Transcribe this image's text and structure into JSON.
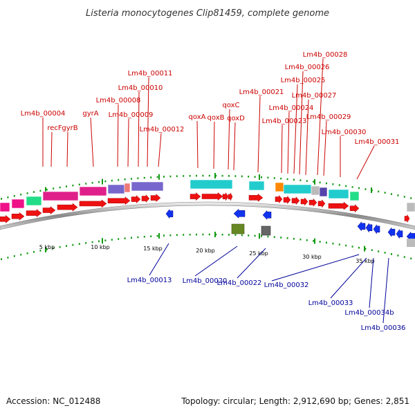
{
  "title": "Listeria monocytogenes Clip81459, complete genome",
  "footer": {
    "accession": "Accession: NC_012488",
    "summary": "Topology: circular; Length: 2,912,690 bp; Genes: 2,851"
  },
  "colors": {
    "forward_cds": "#ee1111",
    "reverse_cds": "#1133ee",
    "label_top": "#cc0000",
    "label_bottom": "#000099",
    "tick_green": "#119911"
  },
  "scale_ticks": [
    {
      "label": "5 kbp"
    },
    {
      "label": "10 kbp"
    },
    {
      "label": "15 kbp"
    },
    {
      "label": "20 kbp"
    },
    {
      "label": "25 kbp"
    },
    {
      "label": "30 kbp"
    },
    {
      "label": "35 kbp"
    }
  ],
  "top_labels": [
    {
      "name": "Lm4b_00004"
    },
    {
      "name": "recF"
    },
    {
      "name": "gyrB"
    },
    {
      "name": "gyrA"
    },
    {
      "name": "Lm4b_00008"
    },
    {
      "name": "Lm4b_00009"
    },
    {
      "name": "Lm4b_00010"
    },
    {
      "name": "Lm4b_00011"
    },
    {
      "name": "Lm4b_00012"
    },
    {
      "name": "qoxA"
    },
    {
      "name": "qoxB"
    },
    {
      "name": "qoxC"
    },
    {
      "name": "qoxD"
    },
    {
      "name": "Lm4b_00021"
    },
    {
      "name": "Lm4b_00023"
    },
    {
      "name": "Lm4b_00024"
    },
    {
      "name": "Lm4b_00025"
    },
    {
      "name": "Lm4b_00026"
    },
    {
      "name": "Lm4b_00027"
    },
    {
      "name": "Lm4b_00028"
    },
    {
      "name": "Lm4b_00029"
    },
    {
      "name": "Lm4b_00030"
    },
    {
      "name": "Lm4b_00031"
    }
  ],
  "bottom_labels": [
    {
      "name": "Lm4b_00013"
    },
    {
      "name": "Lm4b_00020"
    },
    {
      "name": "Lm4b_00022"
    },
    {
      "name": "Lm4b_00032"
    },
    {
      "name": "Lm4b_00033"
    },
    {
      "name": "Lm4b_00034b"
    },
    {
      "name": "Lm4b_00036"
    }
  ]
}
